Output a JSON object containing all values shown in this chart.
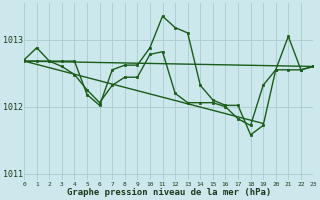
{
  "title": "Graphe pression niveau de la mer (hPa)",
  "background_color": "#cce8ec",
  "grid_color": "#aacccc",
  "line_color": "#1a5c1a",
  "xlim": [
    0,
    23
  ],
  "ylim": [
    1010.9,
    1013.55
  ],
  "yticks": [
    1011,
    1012,
    1013
  ],
  "xticks": [
    0,
    1,
    2,
    3,
    4,
    5,
    6,
    7,
    8,
    9,
    10,
    11,
    12,
    13,
    14,
    15,
    16,
    17,
    18,
    19,
    20,
    21,
    22,
    23
  ],
  "series": [
    {
      "x": [
        0,
        1,
        2,
        3,
        4,
        5,
        6,
        7,
        8,
        9,
        10,
        11,
        12,
        13,
        14,
        15,
        16,
        17,
        18,
        19,
        20,
        21,
        22,
        23
      ],
      "y": [
        1012.7,
        1012.88,
        1012.68,
        1012.68,
        1012.68,
        1012.18,
        1012.02,
        1012.55,
        1012.62,
        1012.62,
        1012.88,
        1013.35,
        1013.18,
        1013.1,
        1012.32,
        1012.1,
        1012.02,
        1012.02,
        1011.58,
        1011.72,
        1012.55,
        1013.05,
        1012.55,
        1012.6
      ],
      "marker": true,
      "linewidth": 1.0
    },
    {
      "x": [
        0,
        23
      ],
      "y": [
        1012.68,
        1012.6
      ],
      "marker": false,
      "linewidth": 1.0
    },
    {
      "x": [
        0,
        19
      ],
      "y": [
        1012.68,
        1011.75
      ],
      "marker": false,
      "linewidth": 1.0
    },
    {
      "x": [
        0,
        1,
        2,
        3,
        4,
        5,
        6,
        7,
        8,
        9,
        10,
        11,
        12,
        13,
        14,
        15,
        16,
        17,
        18,
        19,
        20,
        21,
        22,
        23
      ],
      "y": [
        1012.68,
        1012.68,
        1012.68,
        1012.6,
        1012.48,
        1012.25,
        1012.06,
        1012.32,
        1012.44,
        1012.44,
        1012.78,
        1012.82,
        1012.2,
        1012.06,
        1012.06,
        1012.06,
        1012.0,
        1011.82,
        1011.72,
        1012.32,
        1012.55,
        1012.55,
        1012.55,
        1012.6
      ],
      "marker": true,
      "linewidth": 1.0
    }
  ]
}
